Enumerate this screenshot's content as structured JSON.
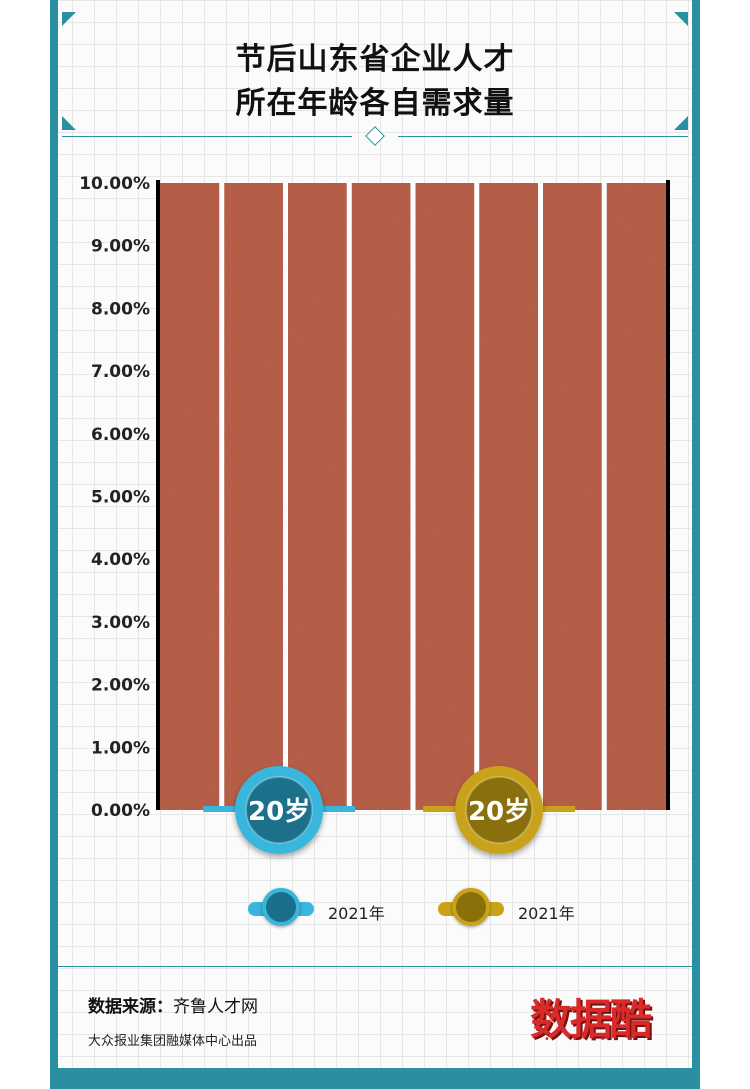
{
  "title_lines": [
    "节后山东省企业人才",
    "所在年龄各自需求量"
  ],
  "chart_data": {
    "type": "bar",
    "title": "节后山东省企业人才所在年龄各自需求量",
    "xlabel": "",
    "ylabel": "",
    "ylim": [
      0,
      10
    ],
    "y_ticks": [
      "0.00%",
      "1.00%",
      "2.00%",
      "3.00%",
      "4.00%",
      "5.00%",
      "6.00%",
      "7.00%",
      "8.00%",
      "9.00%",
      "10.00%"
    ],
    "lanes": 8,
    "markers": [
      {
        "label": "20岁",
        "color": "#39b6dc",
        "ring": "#1b6f8a"
      },
      {
        "label": "20岁",
        "color": "#c9a21a",
        "ring": "#8a6f0a"
      }
    ],
    "series": [
      {
        "name": "2021年",
        "color": "#39b6dc",
        "values": [
          0.0
        ]
      },
      {
        "name": "2021年",
        "color": "#c9a21a",
        "values": [
          0.0
        ]
      }
    ],
    "track_color": "#b5543e",
    "legend_position": "bottom"
  },
  "footer": {
    "source_label": "数据来源：",
    "source_value": "齐鲁人才网",
    "credit": "大众报业集团融媒体中心出品",
    "logo_text": "数据酷"
  }
}
